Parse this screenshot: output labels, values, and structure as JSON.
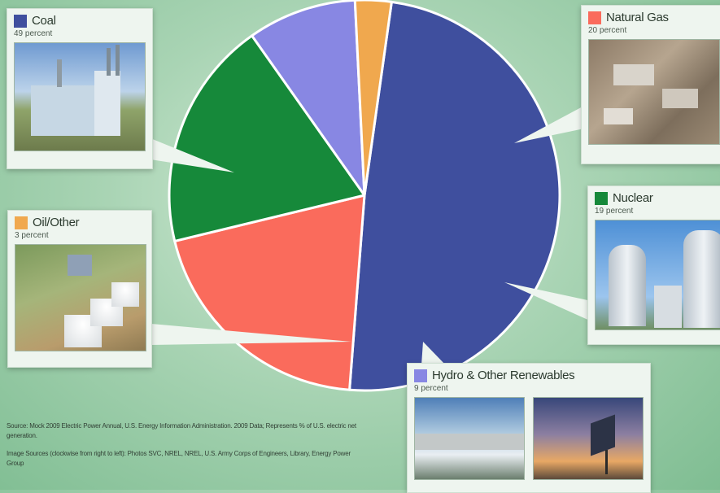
{
  "colors": {
    "coal": "#3f4f9e",
    "natural_gas": "#fa6b5c",
    "nuclear": "#16893a",
    "hydro": "#8887e3",
    "oil": "#f0a84e"
  },
  "chart_data": {
    "type": "pie",
    "start_angle_deg": 8,
    "slices": [
      {
        "key": "coal",
        "label": "Coal",
        "value": 49,
        "percent_text": "49 percent",
        "color": "#3f4f9e"
      },
      {
        "key": "natural_gas",
        "label": "Natural Gas",
        "value": 20,
        "percent_text": "20 percent",
        "color": "#fa6b5c"
      },
      {
        "key": "nuclear",
        "label": "Nuclear",
        "value": 19,
        "percent_text": "19 percent",
        "color": "#16893a"
      },
      {
        "key": "hydro",
        "label": "Hydro & Other Renewables",
        "value": 9,
        "percent_text": "9 percent",
        "color": "#8887e3"
      },
      {
        "key": "oil",
        "label": "Oil/Other",
        "value": 3,
        "percent_text": "3 percent",
        "color": "#f0a84e"
      }
    ]
  },
  "footer": {
    "source": "Source: Mock 2009 Electric Power Annual, U.S. Energy Information Administration. 2009 Data; Represents % of U.S. electric net generation.",
    "image_sources": "Image Sources (clockwise from right to left): Photos SVC, NREL, NREL, U.S. Army Corps of Engineers, Library, Energy Power Group"
  }
}
